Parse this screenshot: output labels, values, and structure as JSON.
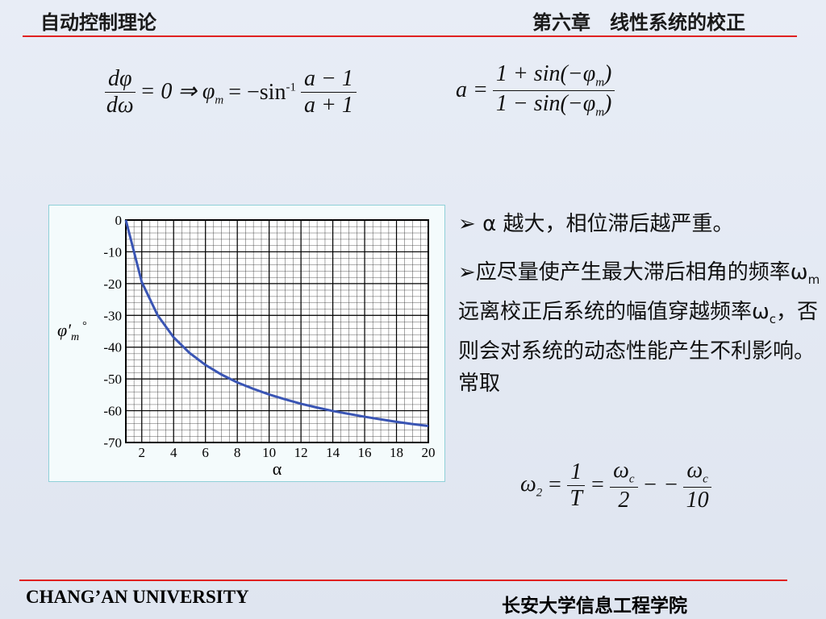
{
  "header": {
    "course": "自动控制理论",
    "chapter": "第六章　线性系统的校正"
  },
  "formulas": {
    "f1": {
      "num1": "dφ",
      "den1": "dω",
      "mid": "= 0 ⇒ φ",
      "sub": "m",
      "eq": "= −sin",
      "sup": "-1",
      "num2": "a − 1",
      "den2": "a + 1"
    },
    "f2": {
      "lhs": "a =",
      "num": "1 + sin(−φ",
      "num_sub": "m",
      "num_end": ")",
      "den": "1 − sin(−φ",
      "den_sub": "m",
      "den_end": ")"
    },
    "f3": {
      "lhs": "ω",
      "lhs_sub": "2",
      "eq1": "=",
      "num1": "1",
      "den1": "T",
      "eq2": "=",
      "num2": "ω",
      "num2_sub": "c",
      "den2": "2",
      "sep": "− −",
      "num3": "ω",
      "num3_sub": "c",
      "den3": "10"
    }
  },
  "bullets": [
    {
      "parts": [
        "α 越大，相位滞后越严重。"
      ]
    },
    {
      "parts": [
        "应尽量使产生最大滞后相角的频率ω",
        "m",
        "远离校正后系统的幅值穿越频率ω",
        "c",
        "，否则会对系统的动态性能产生不利影响。常取"
      ]
    }
  ],
  "chart_data": {
    "type": "line",
    "y_label": "φ′",
    "y_label_sub": "m",
    "y_label_unit": "°",
    "x_label": "α",
    "x": [
      1,
      2,
      3,
      4,
      5,
      6,
      7,
      8,
      9,
      10,
      11,
      12,
      13,
      14,
      15,
      16,
      17,
      18,
      19,
      20
    ],
    "series": [
      {
        "color": "#3a55b4",
        "values": [
          0,
          -19.5,
          -30,
          -36.9,
          -41.8,
          -45.6,
          -48.6,
          -51.1,
          -53.1,
          -54.9,
          -56.4,
          -57.8,
          -59,
          -60.1,
          -61,
          -61.9,
          -62.7,
          -63.5,
          -64.2,
          -64.8
        ]
      }
    ],
    "xlim": [
      1,
      20
    ],
    "xticks": [
      2,
      4,
      6,
      8,
      10,
      12,
      14,
      16,
      18,
      20
    ],
    "ylim": [
      -70,
      0
    ],
    "yticks": [
      0,
      -10,
      -20,
      -30,
      -40,
      -50,
      -60,
      -70
    ],
    "grid": true
  },
  "footer": {
    "university": "CHANG’AN UNIVERSITY",
    "school": "长安大学信息工程学院"
  }
}
